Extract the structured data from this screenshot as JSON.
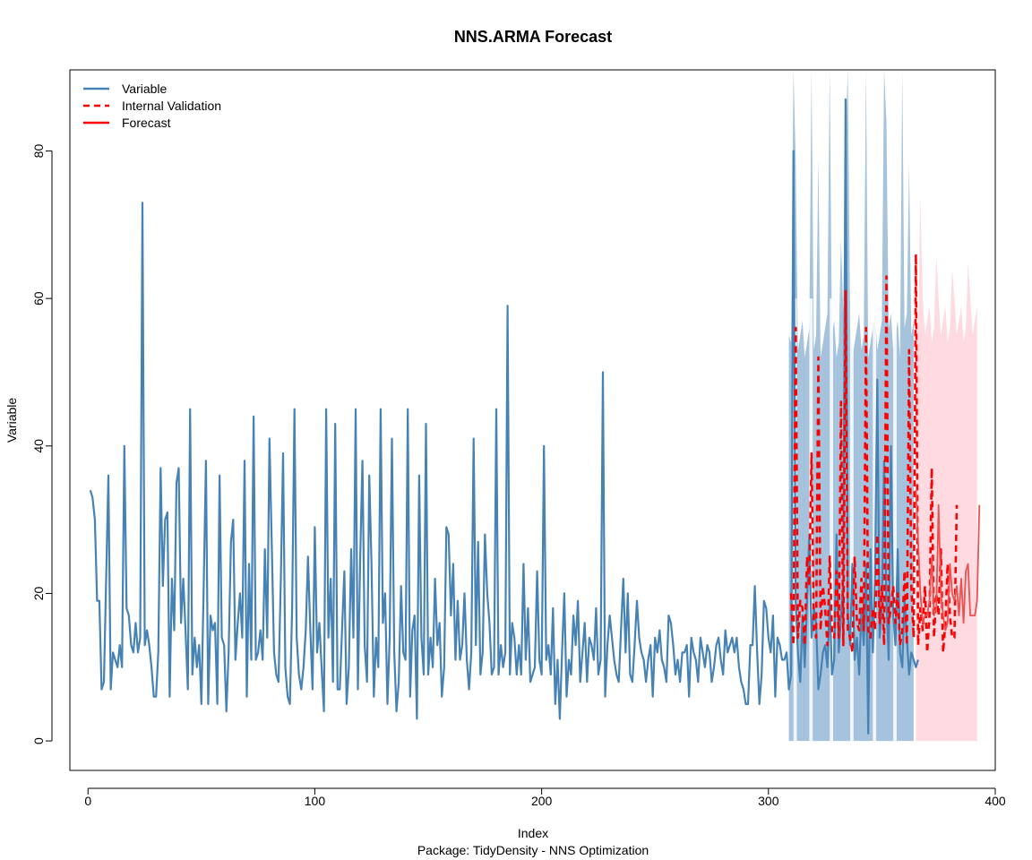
{
  "chart_data": {
    "type": "line",
    "title": "NNS.ARMA Forecast",
    "xlabel": "Index",
    "ylabel": "Variable",
    "subtitle": "Package: TidyDensity - NNS Optimization",
    "xlim": [
      -8,
      400
    ],
    "ylim": [
      -4,
      91
    ],
    "x_ticks": [
      0,
      100,
      200,
      300,
      400
    ],
    "y_ticks": [
      0,
      20,
      40,
      60,
      80
    ],
    "grid": false,
    "legend": {
      "position": "top-left",
      "entries": [
        {
          "label": "Variable",
          "color": "#4682b4",
          "style": "solid"
        },
        {
          "label": "Internal Validation",
          "color": "#ff0000",
          "style": "dashed"
        },
        {
          "label": "Forecast",
          "color": "#ff0000",
          "style": "solid"
        }
      ]
    },
    "colors": {
      "variable": "#4682b4",
      "validation": "#ff0000",
      "forecast": "#ee5050",
      "validation_band": "#a6c3dd",
      "forecast_band": "#ffdbe1"
    },
    "series": [
      {
        "name": "Variable",
        "x_start": 1,
        "values": [
          34,
          33,
          30,
          19,
          19,
          7,
          8,
          22,
          36,
          7,
          12,
          11,
          10,
          13,
          10,
          40,
          18,
          17,
          13,
          12,
          16,
          12,
          14,
          73,
          13,
          15,
          13,
          10,
          6,
          6,
          12,
          37,
          21,
          30,
          31,
          6,
          22,
          15,
          35,
          37,
          16,
          22,
          15,
          7,
          45,
          9,
          14,
          10,
          13,
          5,
          21,
          38,
          5,
          17,
          15,
          16,
          5,
          36,
          14,
          13,
          4,
          12,
          27,
          30,
          11,
          16,
          20,
          14,
          38,
          6,
          24,
          11,
          44,
          11,
          12,
          15,
          11,
          26,
          14,
          41,
          27,
          12,
          9,
          8,
          22,
          39,
          10,
          6,
          5,
          18,
          45,
          14,
          9,
          7,
          10,
          15,
          25,
          15,
          7,
          29,
          12,
          16,
          10,
          4,
          45,
          14,
          22,
          8,
          43,
          7,
          7,
          15,
          23,
          5,
          10,
          26,
          14,
          45,
          7,
          25,
          38,
          13,
          8,
          36,
          24,
          6,
          14,
          10,
          45,
          16,
          20,
          5,
          14,
          41,
          12,
          4,
          8,
          21,
          12,
          11,
          45,
          6,
          15,
          17,
          3,
          36,
          14,
          9,
          43,
          9,
          14,
          10,
          22,
          13,
          16,
          6,
          10,
          29,
          28,
          17,
          24,
          11,
          19,
          11,
          13,
          20,
          11,
          7,
          12,
          41,
          13,
          27,
          9,
          12,
          28,
          20,
          16,
          9,
          10,
          45,
          9,
          13,
          10,
          12,
          59,
          9,
          16,
          14,
          9,
          13,
          9,
          24,
          11,
          18,
          8,
          9,
          10,
          23,
          11,
          9,
          40,
          11,
          13,
          9,
          18,
          5,
          11,
          3,
          12,
          20,
          6,
          11,
          9,
          17,
          13,
          19,
          8,
          12,
          16,
          8,
          14,
          13,
          11,
          18,
          9,
          11,
          50,
          6,
          13,
          17,
          14,
          11,
          9,
          8,
          15,
          22,
          12,
          20,
          9,
          8,
          13,
          19,
          14,
          12,
          11,
          8,
          11,
          13,
          6,
          14,
          12,
          15,
          11,
          10,
          8,
          17,
          16,
          13,
          9,
          11,
          8,
          12,
          12,
          13,
          6,
          14,
          12,
          11,
          8,
          14,
          12,
          10,
          13,
          12,
          8,
          10,
          13,
          14,
          11,
          9,
          15,
          12,
          13,
          14,
          12,
          14,
          10,
          8,
          7,
          5,
          5,
          13,
          13,
          21,
          12,
          5,
          9,
          19,
          18,
          14,
          12,
          17,
          6,
          14,
          13,
          11,
          11,
          12,
          7,
          9,
          80,
          19,
          12,
          8,
          17,
          10,
          19,
          28,
          14,
          18,
          16,
          7,
          9,
          12,
          13,
          10,
          19,
          9,
          11,
          28,
          12,
          17,
          22,
          87,
          17,
          13,
          24,
          11,
          14,
          9,
          18,
          13,
          24,
          1,
          26,
          12,
          22,
          49,
          14,
          18,
          38,
          19,
          11,
          40,
          17,
          13,
          26,
          12,
          10,
          19,
          14,
          9,
          12,
          11,
          10,
          11
        ]
      },
      {
        "name": "Internal Validation",
        "x_start": 310,
        "values": [
          20,
          13,
          56,
          14,
          19,
          18,
          13,
          25,
          21,
          39,
          15,
          14,
          52,
          15,
          21,
          18,
          13,
          25,
          15,
          14,
          23,
          14,
          46,
          13,
          61,
          15,
          14,
          12,
          25,
          16,
          15,
          22,
          15,
          56,
          15,
          14,
          18,
          15,
          28,
          16,
          21,
          13,
          63,
          16,
          18,
          21,
          16,
          20,
          13,
          15,
          23,
          13,
          53,
          21,
          14,
          66,
          13,
          18,
          15,
          21,
          12,
          17,
          37,
          14,
          20,
          17,
          26,
          12,
          16,
          24,
          17,
          14,
          14,
          32
        ]
      },
      {
        "name": "Forecast",
        "x_start": 365,
        "values": [
          34,
          27,
          20,
          16,
          17,
          17,
          19,
          25,
          17,
          18,
          32,
          20,
          17,
          15,
          16,
          24,
          20,
          19,
          21,
          17,
          22,
          16,
          23,
          24,
          17,
          17,
          17,
          19,
          32
        ]
      }
    ],
    "bands": [
      {
        "name": "validation_interval",
        "x_start": 309,
        "x_end": 364,
        "lower": 0,
        "upper_base": 55,
        "upper_peaks": [
          91,
          91,
          91,
          91,
          91,
          91,
          91
        ]
      },
      {
        "name": "forecast_interval",
        "x_start": 365,
        "x_end": 392,
        "lower": 0,
        "upper_base": 57,
        "upper_peaks": [
          74,
          66,
          64,
          65
        ]
      }
    ]
  }
}
